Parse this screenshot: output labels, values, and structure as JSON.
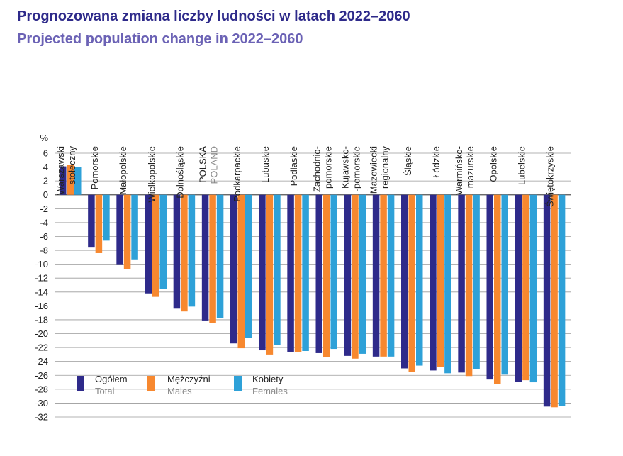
{
  "header": {
    "title_pl": "Prognozowana zmiana liczby ludności w latach 2022–2060",
    "title_en": "Projected population change in 2022–2060"
  },
  "chart_data": {
    "type": "bar",
    "unit_label": "%",
    "ylim": [
      -32,
      6
    ],
    "yticks": [
      6,
      4,
      2,
      0,
      -2,
      -4,
      -6,
      -8,
      -10,
      -12,
      -14,
      -16,
      -18,
      -20,
      -22,
      -24,
      -26,
      -28,
      -30,
      -32
    ],
    "grid": true,
    "categories": [
      [
        "Warszawski",
        "stołeczny"
      ],
      [
        "Pomorskie"
      ],
      [
        "Małopolskie"
      ],
      [
        "Wielkopolskie"
      ],
      [
        "Dolnośląskie"
      ],
      [
        "POLSKA",
        "POLAND"
      ],
      [
        "Podkarpackie"
      ],
      [
        "Lubuskie"
      ],
      [
        "Podlaskie"
      ],
      [
        "Zachodnio-",
        "pomorskie"
      ],
      [
        "Kujawsko-",
        "-pomorskie"
      ],
      [
        "Mazowiecki",
        "regionalny"
      ],
      [
        "Śląskie"
      ],
      [
        "Łódzkie"
      ],
      [
        "Warmińsko-",
        "-mazurskie"
      ],
      [
        "Opolskie"
      ],
      [
        "Lubelskie"
      ],
      [
        "Świętokrzyskie"
      ]
    ],
    "series": [
      {
        "name": "Ogółem",
        "name_en": "Total",
        "color": "#2e2a8a",
        "values": [
          4.1,
          -7.5,
          -10.0,
          -14.2,
          -16.4,
          -18.1,
          -21.4,
          -22.4,
          -22.6,
          -22.8,
          -23.2,
          -23.3,
          -25.0,
          -25.3,
          -25.6,
          -26.6,
          -26.9,
          -30.5
        ]
      },
      {
        "name": "Mężczyźni",
        "name_en": "Males",
        "color": "#f7882f",
        "values": [
          4.3,
          -8.4,
          -10.7,
          -14.7,
          -16.8,
          -18.5,
          -22.1,
          -23.0,
          -22.6,
          -23.4,
          -23.6,
          -23.3,
          -25.5,
          -24.8,
          -26.1,
          -27.3,
          -26.7,
          -30.6
        ]
      },
      {
        "name": "Kobiety",
        "name_en": "Females",
        "color": "#2ea1d8",
        "values": [
          4.0,
          -6.6,
          -9.3,
          -13.6,
          -16.1,
          -17.8,
          -20.6,
          -21.6,
          -22.5,
          -22.2,
          -22.9,
          -23.3,
          -24.6,
          -25.7,
          -25.1,
          -25.9,
          -27.0,
          -30.4
        ]
      }
    ]
  }
}
